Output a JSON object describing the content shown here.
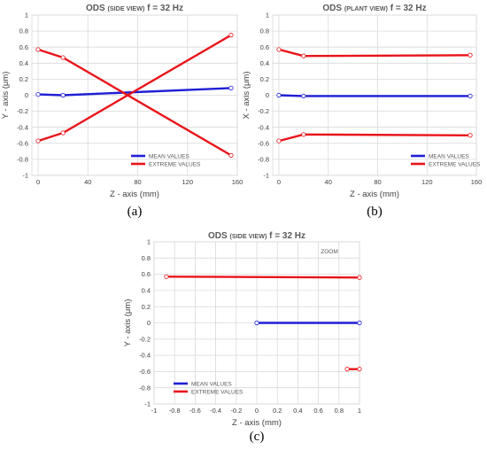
{
  "colors": {
    "mean": "#1f1fd6",
    "extreme": "#e8141a",
    "grid": "#d9d9d9",
    "marker_fill": "#ffffff"
  },
  "chart_data": [
    {
      "type": "line",
      "id": "a",
      "title_main": "ODS",
      "title_small": "(SIDE VIEW)",
      "title_rest": "f = 32 Hz",
      "xlabel": "Z - axis (mm)",
      "ylabel": "Y - axis (μm)",
      "xlim": [
        -5,
        160
      ],
      "ylim": [
        -1,
        1
      ],
      "xticks": [
        0,
        40,
        80,
        120,
        160
      ],
      "yticks": [
        -1,
        -0.8,
        -0.6,
        -0.4,
        -0.2,
        0,
        0.2,
        0.4,
        0.6,
        0.8,
        1
      ],
      "grid": true,
      "legend_position": "bottom-right",
      "caption": "(a)",
      "series": [
        {
          "name": "MEAN VALUES",
          "color_key": "mean",
          "x": [
            0,
            20,
            155
          ],
          "y": [
            0.01,
            0.0,
            0.09
          ]
        },
        {
          "name": "EXTREME VALUES",
          "color_key": "extreme",
          "x": [
            0,
            20,
            155
          ],
          "y": [
            0.57,
            0.47,
            -0.75
          ]
        },
        {
          "name": "",
          "color_key": "extreme",
          "x": [
            0,
            20,
            155
          ],
          "y": [
            -0.57,
            -0.47,
            0.75
          ]
        }
      ]
    },
    {
      "type": "line",
      "id": "b",
      "title_main": "ODS",
      "title_small": "(PLANT VIEW)",
      "title_rest": "f = 32 Hz",
      "xlabel": "Z - axis (mm)",
      "ylabel": "X - axis (μm)",
      "xlim": [
        -5,
        160
      ],
      "ylim": [
        -1,
        1
      ],
      "xticks": [
        0,
        40,
        80,
        120,
        160
      ],
      "yticks": [
        -1,
        -0.8,
        -0.6,
        -0.4,
        -0.2,
        0,
        0.2,
        0.4,
        0.6,
        0.8,
        1
      ],
      "grid": true,
      "legend_position": "bottom-right",
      "caption": "(b)",
      "series": [
        {
          "name": "MEAN VALUES",
          "color_key": "mean",
          "x": [
            0,
            20,
            155
          ],
          "y": [
            0.0,
            -0.01,
            -0.01
          ]
        },
        {
          "name": "EXTREME VALUES",
          "color_key": "extreme",
          "x": [
            0,
            20,
            155
          ],
          "y": [
            0.57,
            0.49,
            0.5
          ]
        },
        {
          "name": "",
          "color_key": "extreme",
          "x": [
            0,
            20,
            155
          ],
          "y": [
            -0.57,
            -0.49,
            -0.5
          ]
        }
      ]
    },
    {
      "type": "line",
      "id": "c",
      "title_main": "ODS",
      "title_small": "(SIDE VIEW)",
      "title_rest": "f = 32 Hz",
      "annotation": "ZOOM",
      "xlabel": "Z - axis (mm)",
      "ylabel": "Y - axis (μm)",
      "xlim": [
        -1,
        1
      ],
      "ylim": [
        -1,
        1
      ],
      "xticks": [
        -1,
        -0.8,
        -0.6,
        -0.4,
        -0.2,
        0,
        0.2,
        0.4,
        0.6,
        0.8,
        1
      ],
      "yticks": [
        -1,
        -0.8,
        -0.6,
        -0.4,
        -0.2,
        0,
        0.2,
        0.4,
        0.6,
        0.8,
        1
      ],
      "grid": true,
      "legend_position": "bottom-left",
      "caption": "(c)",
      "series": [
        {
          "name": "MEAN VALUES",
          "color_key": "mean",
          "x": [
            0,
            1
          ],
          "y": [
            0.0,
            0.0
          ]
        },
        {
          "name": "EXTREME VALUES",
          "color_key": "extreme",
          "x": [
            -0.88,
            1
          ],
          "y": [
            0.57,
            0.56
          ]
        },
        {
          "name": "",
          "color_key": "extreme",
          "x": [
            0.88,
            1
          ],
          "y": [
            -0.57,
            -0.57
          ]
        }
      ]
    }
  ]
}
